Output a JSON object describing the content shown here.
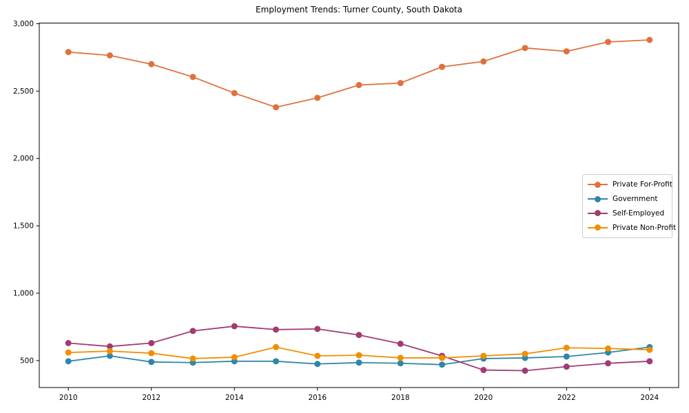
{
  "chart_data": {
    "type": "line",
    "title": "Employment Trends: Turner County, South Dakota",
    "xlabel": "",
    "ylabel": "",
    "grid": false,
    "legend_position": "center-right",
    "xlim": [
      2009.3,
      2024.7
    ],
    "ylim": [
      300,
      3005
    ],
    "x": [
      2010,
      2011,
      2012,
      2013,
      2014,
      2015,
      2016,
      2017,
      2018,
      2019,
      2020,
      2021,
      2022,
      2023,
      2024
    ],
    "x_ticks": [
      {
        "value": 2010,
        "label": "2010"
      },
      {
        "value": 2012,
        "label": "2012"
      },
      {
        "value": 2014,
        "label": "2014"
      },
      {
        "value": 2016,
        "label": "2016"
      },
      {
        "value": 2018,
        "label": "2018"
      },
      {
        "value": 2020,
        "label": "2020"
      },
      {
        "value": 2022,
        "label": "2022"
      },
      {
        "value": 2024,
        "label": "2024"
      }
    ],
    "y_ticks": [
      {
        "value": 500,
        "label": "500"
      },
      {
        "value": 1000,
        "label": "1,000"
      },
      {
        "value": 1500,
        "label": "1,500"
      },
      {
        "value": 2000,
        "label": "2,000"
      },
      {
        "value": 2500,
        "label": "2,500"
      },
      {
        "value": 3000,
        "label": "3,000"
      }
    ],
    "series": [
      {
        "name": "Private For-Profit",
        "color": "#E0713C",
        "values": [
          2790,
          2765,
          2700,
          2605,
          2485,
          2380,
          2450,
          2545,
          2560,
          2680,
          2720,
          2820,
          2795,
          2865,
          2880
        ]
      },
      {
        "name": "Government",
        "color": "#2E86AB",
        "values": [
          495,
          535,
          490,
          485,
          495,
          495,
          475,
          485,
          480,
          470,
          515,
          520,
          530,
          560,
          600
        ]
      },
      {
        "name": "Self-Employed",
        "color": "#A23B72",
        "values": [
          630,
          605,
          630,
          720,
          755,
          730,
          735,
          690,
          625,
          535,
          430,
          425,
          455,
          480,
          495
        ]
      },
      {
        "name": "Private Non-Profit",
        "color": "#F18F01",
        "values": [
          560,
          570,
          555,
          515,
          525,
          600,
          535,
          540,
          520,
          520,
          535,
          550,
          595,
          590,
          580
        ]
      }
    ]
  }
}
